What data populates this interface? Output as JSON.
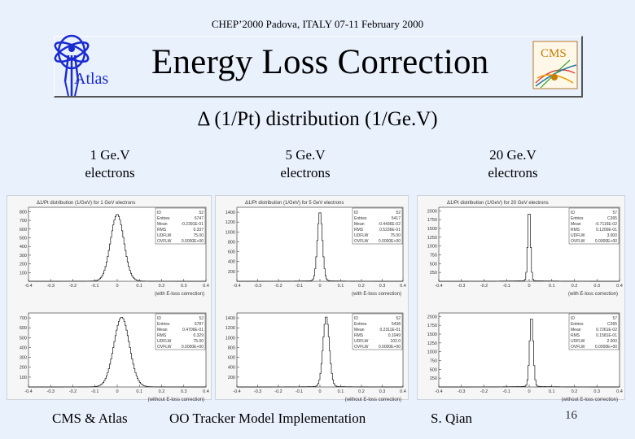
{
  "header": {
    "conference": "CHEP’2000  Padova, ITALY   07-11 February 2000"
  },
  "title": "Energy Loss Correction",
  "atlas_label": "Atlas",
  "cms_logo_text": "CMS",
  "subtitle": "Δ (1/Pt) distribution (1/Ge.V)",
  "columns": [
    {
      "line1": "1 Ge.V",
      "line2": "electrons"
    },
    {
      "line1": "5 Ge.V",
      "line2": "electrons"
    },
    {
      "line1": "20 Ge.V",
      "line2": "electrons"
    }
  ],
  "footer": {
    "left": "CMS & Atlas",
    "middle": "OO Tracker Model Implementation",
    "right": "S. Qian",
    "page": "16"
  },
  "chart_data": [
    {
      "type": "bar",
      "title": "Δ1/Pt distribution (1/GeV)   for 1 GeV electrons",
      "xlabel": "(with E-loss correction)",
      "xticks": [
        "-0.4",
        "-0.3",
        "-0.2",
        "-0.1",
        "0",
        "0.1",
        "0.2",
        "0.3",
        "0.4"
      ],
      "yticks": [
        "100",
        "200",
        "300",
        "400",
        "500",
        "600",
        "700",
        "800"
      ],
      "ylim": [
        0,
        850
      ],
      "stats": {
        "ID": "52",
        "Entries": "6747",
        "Mean": "-0.2391E-01",
        "RMS": "0.337",
        "UDFLW": "75.00",
        "OVFLW": "0.0000E+00"
      },
      "peak_x": 0.0,
      "peak_y": 760,
      "width": 0.03
    },
    {
      "type": "bar",
      "title": "Δ1/Pt distribution (1/GeV)   for 5 GeV electrons",
      "xlabel": "(with E-loss correction)",
      "xticks": [
        "-0.4",
        "-0.3",
        "-0.2",
        "-0.1",
        "0",
        "0.1",
        "0.2",
        "0.3",
        "0.4"
      ],
      "yticks": [
        "200",
        "400",
        "600",
        "800",
        "1000",
        "1200",
        "1400"
      ],
      "ylim": [
        0,
        1500
      ],
      "stats": {
        "ID": "52",
        "Entries": "5417",
        "Mean": "-0.4436E-02",
        "RMS": "0.5236E-01",
        "UDFLW": "75.00",
        "OVFLW": "0.0000E+00"
      },
      "peak_x": 0.0,
      "peak_y": 1400,
      "width": 0.012
    },
    {
      "type": "bar",
      "title": "Δ1/Pt distribution (1/GeV)   for 20 GeV electrons",
      "xlabel": "(with E-loss correction)",
      "xticks": [
        "-0.4",
        "-0.3",
        "-0.2",
        "-0.1",
        "0",
        "0.1",
        "0.2",
        "0.3",
        "0.4"
      ],
      "yticks": [
        "250",
        "500",
        "750",
        "1000",
        "1250",
        "1500",
        "1750",
        "2000"
      ],
      "ylim": [
        0,
        2100
      ],
      "stats": {
        "ID": "57",
        "Entries": "C365",
        "Mean": "-0.7116E-02",
        "RMS": "0.1200E-01",
        "UDFLW": "3.000",
        "OVFLW": "0.0000E+00"
      },
      "peak_x": 0.0,
      "peak_y": 2050,
      "width": 0.006
    },
    {
      "type": "bar",
      "title": "",
      "xlabel": "(without E-loss correction)",
      "xticks": [
        "-0.4",
        "-0.3",
        "-0.2",
        "-0.1",
        "0",
        "0.1",
        "0.2",
        "0.3",
        "0.4"
      ],
      "yticks": [
        "100",
        "200",
        "300",
        "400",
        "500",
        "600",
        "700"
      ],
      "ylim": [
        0,
        750
      ],
      "stats": {
        "ID": "52",
        "Entries": "6787",
        "Mean": "0.4706E-01",
        "RMS": "0.329",
        "UDFLW": "75.00",
        "OVFLW": "0.0000E+00"
      },
      "peak_x": 0.02,
      "peak_y": 700,
      "width": 0.035
    },
    {
      "type": "bar",
      "title": "",
      "xlabel": "(without E-loss correction)",
      "xticks": [
        "-0.4",
        "-0.3",
        "-0.2",
        "-0.1",
        "0",
        "0.1",
        "0.2",
        "0.3",
        "0.4"
      ],
      "yticks": [
        "200",
        "400",
        "600",
        "800",
        "1000",
        "1200",
        "1400"
      ],
      "ylim": [
        0,
        1500
      ],
      "stats": {
        "ID": "52",
        "Entries": "5438",
        "Mean": "0.2311E-01",
        "RMS": "0.1049",
        "UDFLW": "102.0",
        "OVFLW": "0.0000E+00"
      },
      "peak_x": 0.03,
      "peak_y": 1420,
      "width": 0.015
    },
    {
      "type": "bar",
      "title": "",
      "xlabel": "(without E-loss correction)",
      "xticks": [
        "-0.4",
        "-0.3",
        "-0.2",
        "-0.1",
        "0",
        "0.1",
        "0.2",
        "0.3",
        "0.4"
      ],
      "yticks": [
        "250",
        "500",
        "750",
        "1000",
        "1250",
        "1500",
        "1750",
        "2000"
      ],
      "ylim": [
        0,
        2100
      ],
      "stats": {
        "ID": "57",
        "Entries": "C365",
        "Mean": "0.7261E-02",
        "RMS": "0.1581E-01",
        "UDFLW": "2.000",
        "OVFLW": "0.0000E+00"
      },
      "peak_x": 0.01,
      "peak_y": 2000,
      "width": 0.008
    }
  ]
}
